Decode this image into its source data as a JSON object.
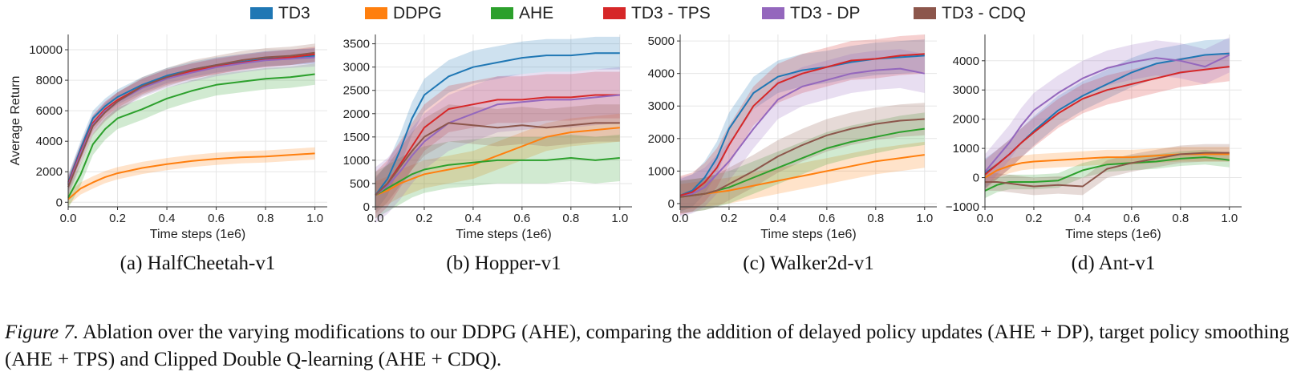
{
  "caption": {
    "label": "Figure 7.",
    "text": " Ablation over the varying modifications to our DDPG (AHE), comparing the addition of delayed policy updates (AHE + DP), target policy smoothing (AHE + TPS) and Clipped Double Q-learning (AHE + CDQ)."
  },
  "legend": [
    {
      "name": "TD3",
      "color": "#1f77b4"
    },
    {
      "name": "DDPG",
      "color": "#ff7f0e"
    },
    {
      "name": "AHE",
      "color": "#2ca02c"
    },
    {
      "name": "TD3 - TPS",
      "color": "#d62728"
    },
    {
      "name": "TD3 - DP",
      "color": "#9467bd"
    },
    {
      "name": "TD3 - CDQ",
      "color": "#8c564b"
    }
  ],
  "chart_data": [
    {
      "type": "line",
      "title": "(a) HalfCheetah-v1",
      "xlabel": "Time steps (1e6)",
      "ylabel": "Average Return",
      "xlim": [
        0,
        1.05
      ],
      "ylim": [
        -300,
        11000
      ],
      "xticks": [
        0.0,
        0.2,
        0.4,
        0.6,
        0.8,
        1.0
      ],
      "xtick_labels": [
        "0.0",
        "0.2",
        "0.4",
        "0.6",
        "0.8",
        "1.0"
      ],
      "yticks": [
        0,
        2000,
        4000,
        6000,
        8000,
        10000
      ],
      "ytick_labels": [
        "0",
        "2000",
        "4000",
        "6000",
        "8000",
        "10000"
      ],
      "x": [
        0.0,
        0.05,
        0.1,
        0.15,
        0.2,
        0.3,
        0.4,
        0.5,
        0.6,
        0.7,
        0.8,
        0.9,
        1.0
      ],
      "series": [
        {
          "name": "TD3",
          "values": [
            1300,
            3500,
            5500,
            6300,
            6900,
            7700,
            8300,
            8700,
            9000,
            9200,
            9400,
            9500,
            9600
          ],
          "band": 500
        },
        {
          "name": "DDPG",
          "values": [
            200,
            900,
            1300,
            1650,
            1900,
            2250,
            2500,
            2700,
            2850,
            2950,
            3000,
            3100,
            3200
          ],
          "band": 400
        },
        {
          "name": "AHE",
          "values": [
            300,
            1800,
            3800,
            4800,
            5500,
            6100,
            6800,
            7300,
            7700,
            7900,
            8100,
            8200,
            8400
          ],
          "band": 700
        },
        {
          "name": "TD3 - TPS",
          "values": [
            1200,
            3300,
            5200,
            6100,
            6700,
            7600,
            8200,
            8600,
            8900,
            9150,
            9350,
            9500,
            9700
          ],
          "band": 500
        },
        {
          "name": "TD3 - DP",
          "values": [
            1100,
            3200,
            5100,
            6000,
            6600,
            7500,
            8100,
            8500,
            8850,
            9100,
            9300,
            9400,
            9500
          ],
          "band": 600
        },
        {
          "name": "TD3 - CDQ",
          "values": [
            1000,
            3000,
            5000,
            5900,
            6600,
            7600,
            8200,
            8700,
            9000,
            9300,
            9500,
            9600,
            9800
          ],
          "band": 600
        }
      ]
    },
    {
      "type": "line",
      "title": "(b) Hopper-v1",
      "xlabel": "Time steps (1e6)",
      "ylabel": "",
      "xlim": [
        0,
        1.05
      ],
      "ylim": [
        0,
        3700
      ],
      "xticks": [
        0.0,
        0.2,
        0.4,
        0.6,
        0.8,
        1.0
      ],
      "xtick_labels": [
        "0.0",
        "0.2",
        "0.4",
        "0.6",
        "0.8",
        "1.0"
      ],
      "yticks": [
        0,
        500,
        1000,
        1500,
        2000,
        2500,
        3000,
        3500
      ],
      "ytick_labels": [
        "0",
        "500",
        "1000",
        "1500",
        "2000",
        "2500",
        "3000",
        "3500"
      ],
      "x": [
        0.0,
        0.05,
        0.1,
        0.15,
        0.2,
        0.3,
        0.4,
        0.5,
        0.6,
        0.7,
        0.8,
        0.9,
        1.0
      ],
      "series": [
        {
          "name": "TD3",
          "values": [
            250,
            600,
            1200,
            1900,
            2400,
            2800,
            3000,
            3100,
            3200,
            3250,
            3250,
            3300,
            3300
          ],
          "band": 350
        },
        {
          "name": "DDPG",
          "values": [
            250,
            350,
            500,
            600,
            700,
            800,
            900,
            1100,
            1300,
            1500,
            1600,
            1650,
            1700
          ],
          "band": 300
        },
        {
          "name": "AHE",
          "values": [
            250,
            400,
            550,
            700,
            800,
            900,
            950,
            1000,
            1000,
            1000,
            1050,
            1000,
            1050
          ],
          "band": 500
        },
        {
          "name": "TD3 - TPS",
          "values": [
            250,
            500,
            900,
            1300,
            1700,
            2100,
            2200,
            2300,
            2300,
            2350,
            2350,
            2400,
            2400
          ],
          "band": 500
        },
        {
          "name": "TD3 - DP",
          "values": [
            250,
            450,
            750,
            1100,
            1400,
            1800,
            2000,
            2200,
            2250,
            2300,
            2300,
            2350,
            2400
          ],
          "band": 600
        },
        {
          "name": "TD3 - CDQ",
          "values": [
            250,
            500,
            850,
            1200,
            1500,
            1800,
            1750,
            1700,
            1750,
            1700,
            1750,
            1800,
            1800
          ],
          "band": 400
        }
      ]
    },
    {
      "type": "line",
      "title": "(c) Walker2d-v1",
      "xlabel": "Time steps (1e6)",
      "ylabel": "",
      "xlim": [
        0,
        1.05
      ],
      "ylim": [
        -100,
        5200
      ],
      "xticks": [
        0.0,
        0.2,
        0.4,
        0.6,
        0.8,
        1.0
      ],
      "xtick_labels": [
        "0.0",
        "0.2",
        "0.4",
        "0.6",
        "0.8",
        "1.0"
      ],
      "yticks": [
        0,
        1000,
        2000,
        3000,
        4000,
        5000
      ],
      "ytick_labels": [
        "0",
        "1000",
        "2000",
        "3000",
        "4000",
        "5000"
      ],
      "x": [
        0.0,
        0.05,
        0.1,
        0.15,
        0.2,
        0.3,
        0.4,
        0.5,
        0.6,
        0.7,
        0.8,
        0.9,
        1.0
      ],
      "series": [
        {
          "name": "TD3",
          "values": [
            250,
            400,
            800,
            1400,
            2300,
            3400,
            3900,
            4100,
            4200,
            4350,
            4450,
            4500,
            4550
          ],
          "band": 500
        },
        {
          "name": "DDPG",
          "values": [
            200,
            250,
            300,
            350,
            400,
            550,
            700,
            850,
            1000,
            1150,
            1300,
            1400,
            1500
          ],
          "band": 400
        },
        {
          "name": "AHE",
          "values": [
            200,
            250,
            300,
            400,
            500,
            800,
            1100,
            1400,
            1700,
            1900,
            2050,
            2200,
            2300
          ],
          "band": 500
        },
        {
          "name": "TD3 - TPS",
          "values": [
            250,
            350,
            650,
            1100,
            1800,
            3000,
            3700,
            4000,
            4200,
            4400,
            4450,
            4550,
            4600
          ],
          "band": 600
        },
        {
          "name": "TD3 - DP",
          "values": [
            200,
            300,
            500,
            900,
            1300,
            2300,
            3200,
            3600,
            3800,
            4000,
            4100,
            4150,
            4000
          ],
          "band": 600
        },
        {
          "name": "TD3 - CDQ",
          "values": [
            200,
            250,
            300,
            400,
            600,
            1000,
            1450,
            1800,
            2100,
            2300,
            2450,
            2550,
            2600
          ],
          "band": 500
        }
      ]
    },
    {
      "type": "line",
      "title": "(d) Ant-v1",
      "xlabel": "Time steps (1e6)",
      "ylabel": "",
      "xlim": [
        0,
        1.05
      ],
      "ylim": [
        -1000,
        4900
      ],
      "xticks": [
        0.0,
        0.2,
        0.4,
        0.6,
        0.8,
        1.0
      ],
      "xtick_labels": [
        "0.0",
        "0.2",
        "0.4",
        "0.6",
        "0.8",
        "1.0"
      ],
      "yticks": [
        -1000,
        0,
        1000,
        2000,
        3000,
        4000
      ],
      "ytick_labels": [
        "−1000",
        "0",
        "1000",
        "2000",
        "3000",
        "4000"
      ],
      "x": [
        0.0,
        0.05,
        0.1,
        0.15,
        0.2,
        0.3,
        0.4,
        0.5,
        0.6,
        0.7,
        0.8,
        0.9,
        1.0
      ],
      "series": [
        {
          "name": "TD3",
          "values": [
            150,
            450,
            800,
            1200,
            1600,
            2300,
            2800,
            3200,
            3600,
            3900,
            4050,
            4200,
            4250
          ],
          "band": 500
        },
        {
          "name": "DDPG",
          "values": [
            0,
            250,
            400,
            500,
            550,
            600,
            650,
            700,
            700,
            750,
            800,
            800,
            800
          ],
          "band": 250
        },
        {
          "name": "AHE",
          "values": [
            -450,
            -250,
            -150,
            -150,
            -150,
            -100,
            250,
            450,
            500,
            550,
            650,
            700,
            600
          ],
          "band": 250
        },
        {
          "name": "TD3 - TPS",
          "values": [
            100,
            450,
            800,
            1200,
            1550,
            2200,
            2700,
            3000,
            3200,
            3400,
            3600,
            3700,
            3800
          ],
          "band": 500
        },
        {
          "name": "TD3 - DP",
          "values": [
            200,
            700,
            1200,
            1800,
            2300,
            2900,
            3400,
            3750,
            3950,
            4100,
            4000,
            3800,
            4200
          ],
          "band": 600
        },
        {
          "name": "TD3 - CDQ",
          "values": [
            -150,
            -150,
            -200,
            -250,
            -300,
            -250,
            -300,
            300,
            500,
            650,
            800,
            850,
            850
          ],
          "band": 300
        }
      ]
    }
  ]
}
